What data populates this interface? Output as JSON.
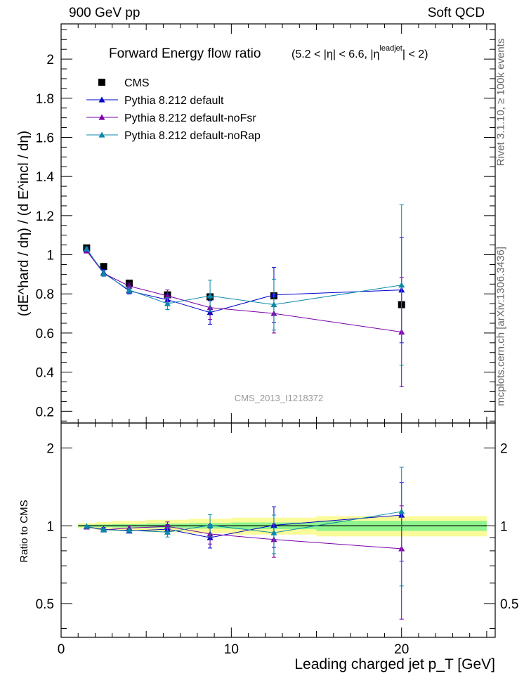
{
  "header": {
    "left": "900 GeV pp",
    "right": "Soft QCD"
  },
  "side_labels": {
    "rivet": "Rivet 3.1.10, ≥ 100k events",
    "mcplots": "mcplots.cern.ch [arXiv:1306.3436]"
  },
  "watermark": "CMS_2013_I1218372",
  "colors": {
    "cms": "#000000",
    "default": "#0000cc",
    "noFsr": "#7a00a8",
    "noRap": "#0a8aa8",
    "band_inner": "#8ef58e",
    "band_outer": "#fbfb9a"
  },
  "chart_data": [
    {
      "panel": "main",
      "type": "scatter",
      "title": "Forward Energy flow ratio",
      "title_cuts": {
        "pre": "(5.2 < |η| < 6.6, |η",
        "sup": "leadjet",
        "post": "| < 2)"
      },
      "ylabel": "(dE^hard / dη) / (d E^incl / dη)",
      "ylim": [
        0.14,
        2.18
      ],
      "xlim": [
        0,
        25.5
      ],
      "yticks": [
        "0.2",
        "0.4",
        "0.6",
        "0.8",
        "1",
        "1.2",
        "1.4",
        "1.6",
        "1.8",
        "2"
      ],
      "ytick_values": [
        0.2,
        0.4,
        0.6,
        0.8,
        1.0,
        1.2,
        1.4,
        1.6,
        1.8,
        2.0
      ],
      "series": [
        {
          "name": "CMS",
          "marker": "square",
          "color": "#000000",
          "x": [
            1.5,
            2.5,
            4,
            6.25,
            8.75,
            12.5,
            20
          ],
          "y": [
            1.035,
            0.94,
            0.855,
            0.795,
            0.785,
            0.79,
            0.745
          ],
          "yerr": [
            0,
            0,
            0,
            0,
            0,
            0,
            0
          ]
        },
        {
          "name": "Pythia 8.212 default",
          "marker": "triangle",
          "color": "#0000cc",
          "x": [
            1.5,
            2.5,
            4,
            6.25,
            8.75,
            12.5,
            20
          ],
          "y": [
            1.025,
            0.91,
            0.815,
            0.77,
            0.705,
            0.795,
            0.82
          ],
          "yerr": [
            0.01,
            0.015,
            0.015,
            0.03,
            0.06,
            0.14,
            0.27
          ]
        },
        {
          "name": "Pythia 8.212 default-noFsr",
          "marker": "triangle",
          "color": "#7a00a8",
          "x": [
            1.5,
            2.5,
            4,
            6.25,
            8.75,
            12.5,
            20
          ],
          "y": [
            1.02,
            0.905,
            0.84,
            0.79,
            0.73,
            0.7,
            0.605
          ],
          "yerr": [
            0.01,
            0.015,
            0.015,
            0.03,
            0.06,
            0.1,
            0.28
          ]
        },
        {
          "name": "Pythia 8.212 default-noRap",
          "marker": "triangle",
          "color": "#0a8aa8",
          "x": [
            1.5,
            2.5,
            4,
            6.25,
            8.75,
            12.5,
            20
          ],
          "y": [
            1.03,
            0.905,
            0.82,
            0.75,
            0.79,
            0.745,
            0.845
          ],
          "yerr": [
            0.01,
            0.015,
            0.015,
            0.03,
            0.08,
            0.13,
            0.41
          ]
        }
      ]
    },
    {
      "panel": "ratio",
      "type": "scatter",
      "xlabel": "Leading charged jet p_T [GeV]",
      "ylabel": "Ratio to CMS",
      "yscale": "log",
      "ylim": [
        0.37,
        2.5
      ],
      "xlim": [
        0,
        25.5
      ],
      "xticks": [
        "0",
        "10",
        "20"
      ],
      "xtick_values": [
        0,
        10,
        20
      ],
      "yticks": [
        "0.5",
        "1",
        "2"
      ],
      "ytick_values": [
        0.5,
        1,
        2
      ],
      "band": {
        "edges": [
          1,
          2,
          3,
          5,
          7.5,
          10,
          15,
          25
        ],
        "inner_half": [
          0.01,
          0.012,
          0.015,
          0.02,
          0.025,
          0.03,
          0.045
        ],
        "outer_half": [
          0.025,
          0.035,
          0.045,
          0.055,
          0.065,
          0.075,
          0.09
        ]
      },
      "series": [
        {
          "name": "Pythia 8.212 default",
          "color": "#0000cc",
          "x": [
            1.5,
            2.5,
            4,
            6.25,
            8.75,
            12.5,
            20
          ],
          "y": [
            0.99,
            0.97,
            0.955,
            0.97,
            0.9,
            1.005,
            1.1
          ],
          "yerr": [
            0.01,
            0.015,
            0.017,
            0.04,
            0.08,
            0.18,
            0.37
          ]
        },
        {
          "name": "Pythia 8.212 default-noFsr",
          "color": "#7a00a8",
          "x": [
            1.5,
            2.5,
            4,
            6.25,
            8.75,
            12.5,
            20
          ],
          "y": [
            0.99,
            0.965,
            0.98,
            0.995,
            0.93,
            0.885,
            0.815
          ],
          "yerr": [
            0.01,
            0.015,
            0.017,
            0.04,
            0.08,
            0.13,
            0.38
          ]
        },
        {
          "name": "Pythia 8.212 default-noRap",
          "color": "#0a8aa8",
          "x": [
            1.5,
            2.5,
            4,
            6.25,
            8.75,
            12.5,
            20
          ],
          "y": [
            0.995,
            0.965,
            0.96,
            0.945,
            1.005,
            0.94,
            1.135
          ],
          "yerr": [
            0.01,
            0.015,
            0.017,
            0.04,
            0.1,
            0.16,
            0.55
          ]
        }
      ]
    }
  ]
}
